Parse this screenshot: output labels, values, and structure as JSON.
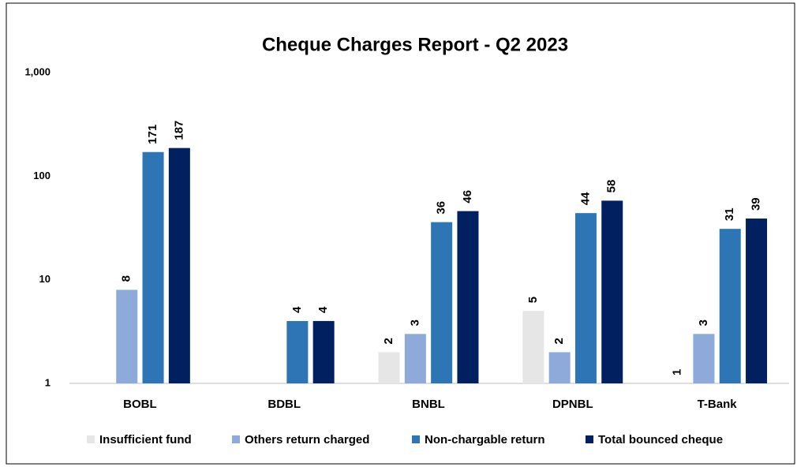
{
  "chart_data": {
    "type": "bar",
    "title": "Cheque Charges Report - Q2 2023",
    "categories": [
      "BOBL",
      "BDBL",
      "BNBL",
      "DPNBL",
      "T-Bank"
    ],
    "series": [
      {
        "name": "Insufficient fund",
        "color": "#e7e6e6",
        "values": [
          null,
          null,
          2,
          5,
          1
        ]
      },
      {
        "name": "Others return charged",
        "color": "#8eaadb",
        "values": [
          8,
          null,
          3,
          2,
          3
        ]
      },
      {
        "name": "Non-chargable return",
        "color": "#2e75b6",
        "values": [
          171,
          4,
          36,
          44,
          31
        ]
      },
      {
        "name": "Total bounced cheque",
        "color": "#002060",
        "values": [
          187,
          4,
          46,
          58,
          39
        ]
      }
    ],
    "log_scale": true,
    "ylim": [
      1,
      1000
    ],
    "yticks": [
      1,
      10,
      100,
      {
        "value": 1000,
        "label": "1,000"
      }
    ],
    "grid": false,
    "legend": "bottom"
  }
}
